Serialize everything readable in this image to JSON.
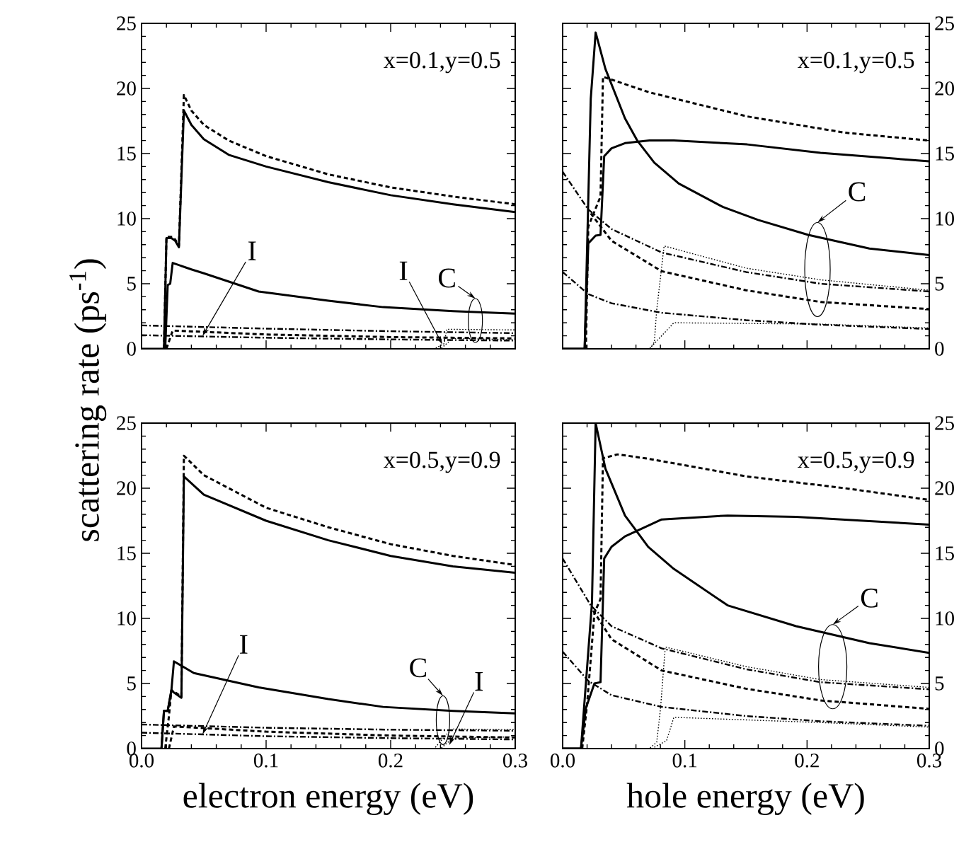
{
  "chart_data": [
    {
      "type": "line",
      "ylabel": "scattering rate (ps$^{-1}$)",
      "xlim": [
        0,
        0.3
      ],
      "ylim": [
        0,
        25
      ],
      "xticks": [
        0,
        0.1,
        0.2,
        0.3
      ],
      "yticks": [
        0,
        5,
        10,
        15,
        20,
        25
      ],
      "tick_labels": "y",
      "annotations": [
        "x=0.1,y=0.5",
        {
          "text": "I",
          "x": 0.049,
          "y": 1.0
        },
        {
          "text": "I",
          "x": 0.2415,
          "y": 0.34
        },
        {
          "text": "C",
          "x": 0.268,
          "y": 1.25
        }
      ],
      "series": [
        {
          "color": "#000000",
          "line_style": "solid",
          "x": [
            0,
            0.018,
            0.02,
            0.024,
            0.027,
            0.03,
            0.034,
            0.04,
            0.05,
            0.07,
            0.1,
            0.15,
            0.2,
            0.25,
            0.3
          ],
          "values": [
            0,
            0,
            8.5,
            8.5,
            8.3,
            7.8,
            18.3,
            17.2,
            16.1,
            14.9,
            14.0,
            12.8,
            11.8,
            11.1,
            10.5
          ]
        },
        {
          "color": "#000000",
          "line_style": "dashed",
          "x": [
            0.018,
            0.02,
            0.024,
            0.027,
            0.03,
            0.034,
            0.04,
            0.05,
            0.07,
            0.1,
            0.15,
            0.2,
            0.25,
            0.3
          ],
          "values": [
            0,
            8.6,
            8.6,
            8.4,
            7.9,
            19.5,
            18.3,
            17.2,
            16.0,
            14.8,
            13.4,
            12.4,
            11.7,
            11.1
          ]
        },
        {
          "color": "#000000",
          "line_style": "solid",
          "x": [
            0.019,
            0.021,
            0.023,
            0.025,
            0.04,
            0.05,
            0.094,
            0.15,
            0.194,
            0.25,
            0.3
          ],
          "values": [
            0,
            4.9,
            5.0,
            6.6,
            6.1,
            5.8,
            4.4,
            3.7,
            3.2,
            2.9,
            2.7
          ]
        },
        {
          "color": "#000000",
          "line_style": "dashdot",
          "x": [
            0,
            0.1,
            0.2,
            0.3
          ],
          "values": [
            1.8,
            1.55,
            1.35,
            1.2
          ]
        },
        {
          "color": "#000000",
          "line_style": "dashdot",
          "x": [
            0,
            0.1,
            0.2,
            0.3
          ],
          "values": [
            1.05,
            0.85,
            0.72,
            0.63
          ]
        },
        {
          "color": "#000000",
          "line_style": "dashed",
          "x": [
            0.02,
            0.025,
            0.1,
            0.2,
            0.3
          ],
          "values": [
            0,
            1.4,
            1.1,
            0.9,
            0.8
          ]
        },
        {
          "color": "#000000",
          "line_style": "dotted",
          "x": [
            0,
            0.235,
            0.243,
            0.245,
            0.3
          ],
          "values": [
            0,
            0,
            0.4,
            1.5,
            1.45
          ]
        },
        {
          "color": "#000000",
          "line_style": "dotted",
          "x": [
            0,
            0.24,
            0.25,
            0.3
          ],
          "values": [
            0,
            0,
            0.8,
            0.7
          ]
        }
      ]
    },
    {
      "type": "line",
      "xlim": [
        0,
        0.3
      ],
      "ylim": [
        0,
        25
      ],
      "xticks": [
        0,
        0.1,
        0.2,
        0.3
      ],
      "yticks": [
        0,
        5,
        10,
        15,
        20,
        25
      ],
      "tick_labels": "y",
      "annotations": [
        "x=0.1,y=0.5",
        {
          "text": "C",
          "x": 0.201,
          "y": 8.75
        }
      ],
      "series": [
        {
          "color": "#000000",
          "line_style": "solid",
          "x": [
            0,
            0.018,
            0.023,
            0.027,
            0.035,
            0.051,
            0.061,
            0.075,
            0.095,
            0.131,
            0.16,
            0.201,
            0.251,
            0.3
          ],
          "values": [
            0,
            0,
            19.2,
            24.3,
            21.5,
            17.7,
            16.0,
            14.3,
            12.7,
            10.9,
            9.9,
            8.75,
            7.7,
            7.2
          ]
        },
        {
          "color": "#000000",
          "line_style": "solid",
          "x": [
            0,
            0.018,
            0.021,
            0.027,
            0.031,
            0.034,
            0.04,
            0.051,
            0.071,
            0.091,
            0.151,
            0.211,
            0.3
          ],
          "values": [
            0,
            0,
            8.1,
            8.7,
            8.75,
            14.8,
            15.4,
            15.8,
            16.0,
            16.0,
            15.7,
            15.05,
            14.4
          ]
        },
        {
          "color": "#000000",
          "line_style": "dashed",
          "x": [
            0.019,
            0.021,
            0.031,
            0.033,
            0.071,
            0.151,
            0.231,
            0.3
          ],
          "values": [
            0,
            9.4,
            11.7,
            20.9,
            19.7,
            17.85,
            16.6,
            16.0
          ]
        },
        {
          "color": "#000000",
          "line_style": "dashdot",
          "x": [
            0,
            0.021,
            0.04,
            0.081,
            0.15,
            0.211,
            0.3
          ],
          "values": [
            13.6,
            10.7,
            9.2,
            7.4,
            5.9,
            5.0,
            4.4
          ]
        },
        {
          "color": "#000000",
          "line_style": "dashed",
          "x": [
            0.023,
            0.04,
            0.081,
            0.15,
            0.211,
            0.3
          ],
          "values": [
            10.4,
            8.3,
            5.96,
            4.5,
            3.6,
            3.05
          ]
        },
        {
          "color": "#000000",
          "line_style": "dashdot",
          "x": [
            0,
            0.021,
            0.04,
            0.081,
            0.15,
            0.211,
            0.3
          ],
          "values": [
            5.9,
            4.2,
            3.5,
            2.77,
            2.2,
            1.85,
            1.52
          ]
        },
        {
          "color": "#000000",
          "line_style": "dotted",
          "x": [
            0,
            0.071,
            0.075,
            0.077,
            0.083,
            0.15,
            0.211,
            0.3
          ],
          "values": [
            0,
            0,
            0.5,
            3,
            7.9,
            6.2,
            5.3,
            4.5
          ]
        },
        {
          "color": "#000000",
          "line_style": "dotted",
          "x": [
            0.071,
            0.079,
            0.091,
            0.211,
            0.3
          ],
          "values": [
            0,
            0.8,
            2.0,
            1.9,
            1.6
          ]
        }
      ]
    },
    {
      "type": "line",
      "xlabel": "electron energy (eV)",
      "xlim": [
        0,
        0.3
      ],
      "ylim": [
        0,
        25
      ],
      "xticks": [
        {
          "value": 0,
          "label": "0.0"
        },
        {
          "value": 0.1,
          "label": "0.1"
        },
        {
          "value": 0.2,
          "label": "0.2"
        },
        {
          "value": 0.3,
          "label": "0.3"
        }
      ],
      "yticks": [
        0,
        5,
        10,
        15,
        20,
        25
      ],
      "annotations": [
        "x=0.5,y=0.9",
        {
          "text": "I",
          "x": 0.049,
          "y": 1.1
        },
        {
          "text": "C",
          "x": 0.242,
          "y": 1.42
        },
        {
          "text": "I",
          "x": 0.247,
          "y": 0.27
        }
      ],
      "series": [
        {
          "color": "#000000",
          "line_style": "solid",
          "x": [
            0,
            0.016,
            0.018,
            0.021,
            0.024,
            0.026,
            0.032,
            0.034,
            0.05,
            0.1,
            0.15,
            0.2,
            0.25,
            0.3
          ],
          "values": [
            0,
            0,
            2.9,
            2.9,
            4.5,
            4.3,
            3.9,
            20.9,
            19.5,
            17.5,
            16.0,
            14.8,
            14.0,
            13.5
          ]
        },
        {
          "color": "#000000",
          "line_style": "dashed",
          "x": [
            0.019,
            0.022,
            0.024,
            0.032,
            0.034,
            0.05,
            0.1,
            0.15,
            0.2,
            0.25,
            0.3
          ],
          "values": [
            0,
            2.5,
            4.5,
            4.0,
            22.5,
            21.0,
            18.5,
            17.0,
            15.7,
            14.8,
            14.1
          ]
        },
        {
          "color": "#000000",
          "line_style": "solid",
          "x": [
            0.016,
            0.018,
            0.021,
            0.024,
            0.026,
            0.042,
            0.094,
            0.15,
            0.194,
            0.25,
            0.3
          ],
          "values": [
            0,
            2.9,
            2.9,
            4.5,
            6.7,
            5.8,
            4.7,
            3.8,
            3.2,
            2.9,
            2.7
          ]
        },
        {
          "color": "#000000",
          "line_style": "dashdot",
          "x": [
            0,
            0.1,
            0.2,
            0.3
          ],
          "values": [
            1.85,
            1.6,
            1.45,
            1.37
          ]
        },
        {
          "color": "#000000",
          "line_style": "dashdot",
          "x": [
            0,
            0.1,
            0.2,
            0.3
          ],
          "values": [
            1.22,
            0.95,
            0.8,
            0.7
          ]
        },
        {
          "color": "#000000",
          "line_style": "dashed",
          "x": [
            0.022,
            0.026,
            0.1,
            0.2,
            0.3
          ],
          "values": [
            0,
            1.7,
            1.3,
            1.0,
            0.85
          ]
        },
        {
          "color": "#000000",
          "line_style": "dotted",
          "x": [
            0,
            0.235,
            0.245,
            0.25,
            0.3
          ],
          "values": [
            0,
            0,
            1.1,
            1.5,
            1.45
          ]
        },
        {
          "color": "#000000",
          "line_style": "dotted",
          "x": [
            0,
            0.24,
            0.25,
            0.3
          ],
          "values": [
            0,
            0,
            0.8,
            0.9
          ]
        }
      ]
    },
    {
      "type": "line",
      "xlabel": "hole energy (eV)",
      "xlim": [
        0,
        0.3
      ],
      "ylim": [
        0,
        25
      ],
      "xticks": [
        {
          "value": 0,
          "label": "0.0"
        },
        {
          "value": 0.1,
          "label": "0.1"
        },
        {
          "value": 0.2,
          "label": "0.2"
        },
        {
          "value": 0.3,
          "label": "0.3"
        }
      ],
      "yticks": [
        0,
        5,
        10,
        15,
        20,
        25
      ],
      "annotations": [
        "x=0.5,y=0.9",
        {
          "text": "C",
          "x": 0.221,
          "y": 5.04
        }
      ],
      "series": [
        {
          "color": "#000000",
          "line_style": "solid",
          "x": [
            0,
            0.015,
            0.024,
            0.027,
            0.035,
            0.051,
            0.07,
            0.091,
            0.135,
            0.191,
            0.251,
            0.3
          ],
          "values": [
            0,
            0,
            11.2,
            25,
            21.5,
            17.9,
            15.5,
            13.8,
            11.0,
            9.4,
            8.1,
            7.35
          ]
        },
        {
          "color": "#000000",
          "line_style": "solid",
          "x": [
            0,
            0.015,
            0.019,
            0.026,
            0.031,
            0.034,
            0.04,
            0.051,
            0.081,
            0.135,
            0.191,
            0.3
          ],
          "values": [
            0,
            0,
            3.1,
            5.0,
            5.1,
            14.6,
            15.5,
            16.3,
            17.6,
            17.9,
            17.8,
            17.2
          ]
        },
        {
          "color": "#000000",
          "line_style": "dashed",
          "x": [
            0.016,
            0.02,
            0.026,
            0.031,
            0.033,
            0.045,
            0.071,
            0.151,
            0.231,
            0.3
          ],
          "values": [
            0,
            3.4,
            10.4,
            11.5,
            22.3,
            22.6,
            22.25,
            20.9,
            20.0,
            19.1
          ]
        },
        {
          "color": "#000000",
          "line_style": "dashdot",
          "x": [
            0,
            0.023,
            0.04,
            0.081,
            0.15,
            0.211,
            0.3
          ],
          "values": [
            14.6,
            11.0,
            9.4,
            7.7,
            6.1,
            5.1,
            4.55
          ]
        },
        {
          "color": "#000000",
          "line_style": "dashed",
          "x": [
            0.025,
            0.04,
            0.081,
            0.15,
            0.211,
            0.3
          ],
          "values": [
            10.6,
            8.4,
            6.0,
            4.6,
            3.7,
            3.05
          ]
        },
        {
          "color": "#000000",
          "line_style": "dashdot",
          "x": [
            0,
            0.021,
            0.04,
            0.081,
            0.15,
            0.211,
            0.3
          ],
          "values": [
            7.45,
            5.2,
            4.1,
            3.2,
            2.5,
            2.1,
            1.75
          ]
        },
        {
          "color": "#000000",
          "line_style": "dotted",
          "x": [
            0,
            0.071,
            0.077,
            0.08,
            0.084,
            0.15,
            0.211,
            0.3
          ],
          "values": [
            0,
            0,
            0.5,
            3,
            7.8,
            6.3,
            5.3,
            4.7
          ]
        },
        {
          "color": "#000000",
          "line_style": "dotted",
          "x": [
            0.073,
            0.085,
            0.091,
            0.211,
            0.3
          ],
          "values": [
            0,
            0.6,
            2.4,
            2.0,
            1.65
          ]
        }
      ]
    }
  ]
}
